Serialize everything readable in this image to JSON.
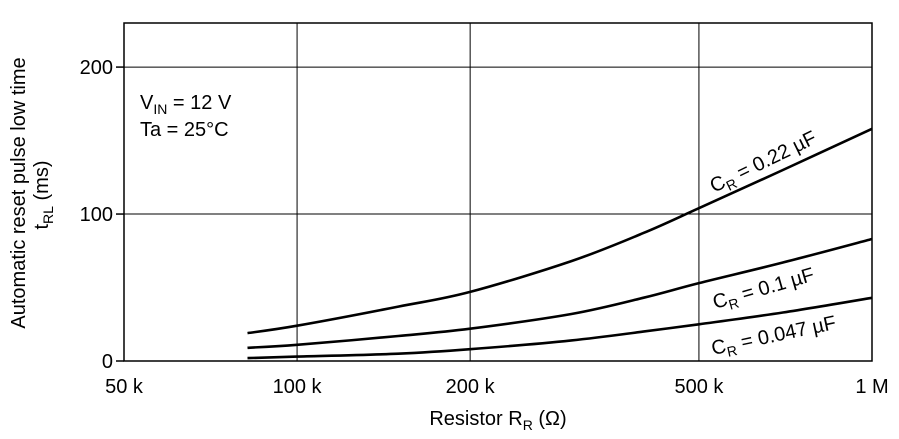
{
  "chart_data": {
    "type": "line",
    "x_scale": "log",
    "xlim": [
      50000,
      1000000
    ],
    "ylim": [
      0,
      230
    ],
    "grid": true,
    "xlabel": {
      "main": "Resistor  R",
      "sub": "R",
      "unit": "(Ω)"
    },
    "ylabel": {
      "line1": "Automatic reset pulse low time",
      "line2_main": "t",
      "line2_sub": "RL",
      "line2_unit": "(ms)"
    },
    "x_ticks": [
      {
        "value": 50000,
        "label": "50 k"
      },
      {
        "value": 100000,
        "label": "100 k"
      },
      {
        "value": 200000,
        "label": "200 k"
      },
      {
        "value": 500000,
        "label": "500 k"
      },
      {
        "value": 1000000,
        "label": "1 M"
      }
    ],
    "y_ticks": [
      {
        "value": 0,
        "label": "0"
      },
      {
        "value": 100,
        "label": "100"
      },
      {
        "value": 200,
        "label": "200"
      }
    ],
    "conditions": [
      {
        "main": "V",
        "sub": "IN",
        "rest": " = 12 V"
      },
      {
        "main": "Ta = 25°C",
        "sub": "",
        "rest": ""
      }
    ],
    "series": [
      {
        "name": "C_R = 0.22 µF",
        "label_main": "C",
        "label_sub": "R",
        "label_rest": " = 0.22 µF",
        "x": [
          82000,
          100000,
          150000,
          200000,
          300000,
          400000,
          500000,
          700000,
          1000000
        ],
        "y": [
          19,
          24,
          37,
          47,
          68,
          87,
          104,
          130,
          158
        ]
      },
      {
        "name": "C_R = 0.1 µF",
        "label_main": "C",
        "label_sub": "R",
        "label_rest": " = 0.1 µF",
        "x": [
          82000,
          100000,
          150000,
          200000,
          300000,
          400000,
          500000,
          700000,
          1000000
        ],
        "y": [
          9,
          11,
          17,
          22,
          32,
          43,
          53,
          67,
          83
        ]
      },
      {
        "name": "C_R = 0.047 µF",
        "label_main": "C",
        "label_sub": "R",
        "label_rest": " = 0.047 µF",
        "x": [
          82000,
          100000,
          150000,
          200000,
          300000,
          400000,
          500000,
          700000,
          1000000
        ],
        "y": [
          2,
          3,
          5,
          8,
          14,
          20,
          25,
          33,
          43
        ]
      }
    ]
  }
}
